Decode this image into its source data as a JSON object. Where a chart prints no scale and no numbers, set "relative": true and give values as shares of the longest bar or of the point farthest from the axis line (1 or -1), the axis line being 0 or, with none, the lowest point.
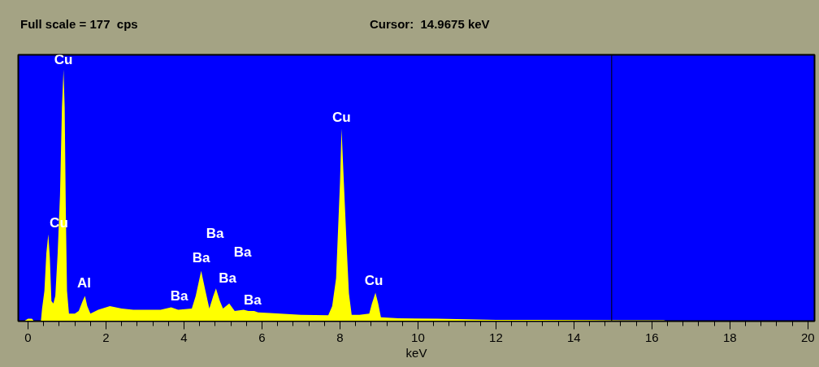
{
  "chart_data": {
    "type": "area",
    "title": "Full scale = 177  cps",
    "xlabel": "keV",
    "relative": true,
    "x": [
      -0.1,
      0,
      0.1,
      0.15,
      0.33,
      0.36,
      0.42,
      0.47,
      0.52,
      0.56,
      0.6,
      0.65,
      0.7,
      0.76,
      0.82,
      0.87,
      0.91,
      0.94,
      0.97,
      1.0,
      1.05,
      1.2,
      1.3,
      1.4,
      1.46,
      1.52,
      1.6,
      1.8,
      2.1,
      2.4,
      2.7,
      3.0,
      3.4,
      3.67,
      3.85,
      4.2,
      4.3,
      4.44,
      4.55,
      4.65,
      4.75,
      4.82,
      4.92,
      5.0,
      5.16,
      5.3,
      5.53,
      5.65,
      5.8,
      5.9,
      6.2,
      7.0,
      7.7,
      7.8,
      7.9,
      8.0,
      8.04,
      8.1,
      8.18,
      8.23,
      8.3,
      8.5,
      8.75,
      8.82,
      8.91,
      8.98,
      9.05,
      9.5,
      10.5,
      11.0,
      12.0,
      13.0,
      14.5,
      15.5,
      16.3,
      16.4,
      20.1
    ],
    "series": [
      {
        "color": "#ffff00",
        "values": [
          0,
          0.01,
          0.01,
          0,
          0,
          0.05,
          0.12,
          0.27,
          0.345,
          0.25,
          0.08,
          0.07,
          0.1,
          0.27,
          0.5,
          0.85,
          1.0,
          0.85,
          0.43,
          0.12,
          0.03,
          0.03,
          0.04,
          0.08,
          0.1,
          0.06,
          0.03,
          0.045,
          0.06,
          0.05,
          0.045,
          0.045,
          0.045,
          0.055,
          0.045,
          0.05,
          0.1,
          0.2,
          0.12,
          0.05,
          0.1,
          0.13,
          0.08,
          0.05,
          0.07,
          0.04,
          0.045,
          0.04,
          0.04,
          0.035,
          0.032,
          0.025,
          0.023,
          0.06,
          0.17,
          0.55,
          0.765,
          0.55,
          0.27,
          0.11,
          0.025,
          0.025,
          0.03,
          0.07,
          0.113,
          0.07,
          0.015,
          0.011,
          0.01,
          0.008,
          0.005,
          0.005,
          0.004,
          0.003,
          0.003,
          0,
          0
        ]
      }
    ],
    "xlim": [
      -0.25,
      20.17
    ],
    "xticks": [
      0,
      {
        "value": 0.4,
        "label": null
      },
      {
        "value": 0.8,
        "label": null
      },
      {
        "value": 1.2,
        "label": null
      },
      {
        "value": 1.6,
        "label": null
      },
      2,
      {
        "value": 2.4,
        "label": null
      },
      {
        "value": 2.8,
        "label": null
      },
      {
        "value": 3.2,
        "label": null
      },
      {
        "value": 3.6,
        "label": null
      },
      4,
      {
        "value": 4.4,
        "label": null
      },
      {
        "value": 4.8,
        "label": null
      },
      {
        "value": 5.2,
        "label": null
      },
      {
        "value": 5.6,
        "label": null
      },
      6,
      {
        "value": 6.4,
        "label": null
      },
      {
        "value": 6.8,
        "label": null
      },
      {
        "value": 7.2,
        "label": null
      },
      {
        "value": 7.6,
        "label": null
      },
      8,
      {
        "value": 8.4,
        "label": null
      },
      {
        "value": 8.8,
        "label": null
      },
      {
        "value": 9.2,
        "label": null
      },
      {
        "value": 9.6,
        "label": null
      },
      10,
      {
        "value": 10.4,
        "label": null
      },
      {
        "value": 10.8,
        "label": null
      },
      {
        "value": 11.2,
        "label": null
      },
      {
        "value": 11.6,
        "label": null
      },
      12,
      {
        "value": 12.4,
        "label": null
      },
      {
        "value": 12.8,
        "label": null
      },
      {
        "value": 13.2,
        "label": null
      },
      {
        "value": 13.6,
        "label": null
      },
      14,
      {
        "value": 14.4,
        "label": null
      },
      {
        "value": 14.8,
        "label": null
      },
      {
        "value": 15.2,
        "label": null
      },
      {
        "value": 15.6,
        "label": null
      },
      16,
      {
        "value": 16.4,
        "label": null
      },
      {
        "value": 16.8,
        "label": null
      },
      {
        "value": 17.2,
        "label": null
      },
      {
        "value": 17.6,
        "label": null
      },
      18,
      {
        "value": 18.4,
        "label": null
      },
      {
        "value": 18.8,
        "label": null
      },
      {
        "value": 19.2,
        "label": null
      },
      {
        "value": 19.6,
        "label": null
      },
      20
    ],
    "grid": false,
    "ref_lines": [
      {
        "axis": "x",
        "value": 14.9675,
        "label": "Cursor:  14.9675 keV",
        "color": "#000000"
      }
    ],
    "annotations": [
      {
        "text": "Cu",
        "x": 0.91,
        "y": 1.0
      },
      {
        "text": "Cu",
        "x": 0.52,
        "y": 0.345
      },
      {
        "text": "Al",
        "x": 1.46,
        "y": 0.1
      },
      {
        "text": "Ba",
        "x": 3.67,
        "y": 0.055
      },
      {
        "text": "Ba",
        "x": 4.44,
        "y": 0.2
      },
      "Ba",
      "Ba",
      {
        "text": "Ba",
        "x": 5.16,
        "y": 0.07
      },
      {
        "text": "Ba",
        "x": 5.8,
        "y": 0.04
      },
      {
        "text": "Cu",
        "x": 8.04,
        "y": 0.765
      },
      {
        "text": "Cu",
        "x": 8.91,
        "y": 0.113
      }
    ]
  }
}
